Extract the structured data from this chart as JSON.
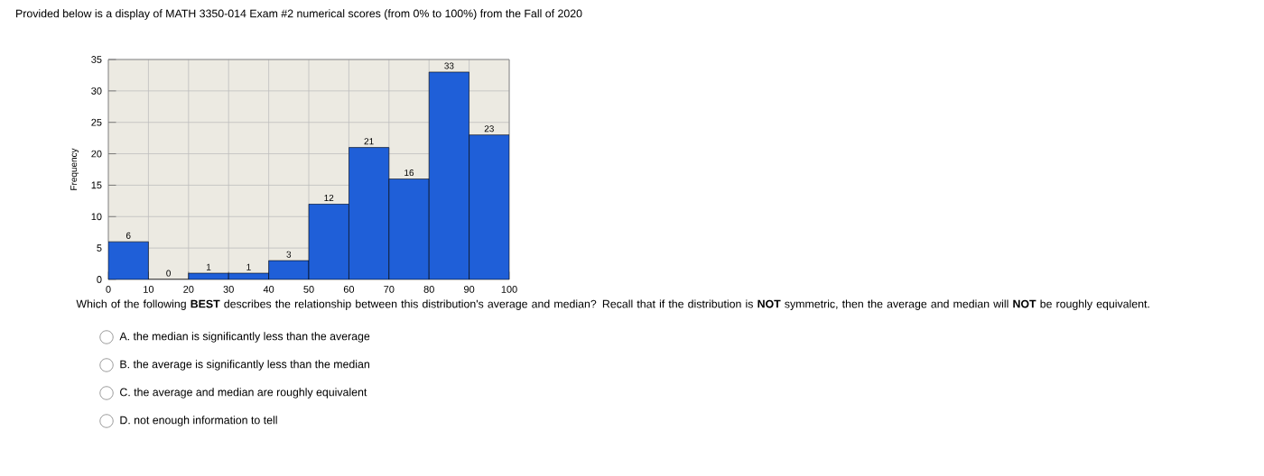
{
  "chart_data": {
    "type": "histogram",
    "title": "Provided below is a display of MATH 3350-014 Exam #2 numerical scores (from 0% to 100%) from the Fall of 2020",
    "ylabel": "Frequency",
    "bins": [
      0,
      10,
      20,
      30,
      40,
      50,
      60,
      70,
      80,
      90,
      100
    ],
    "values": [
      6,
      0,
      1,
      1,
      3,
      12,
      21,
      16,
      33,
      23
    ],
    "color": "#1f5fd8",
    "data_labels": true,
    "xlim": [
      0,
      100
    ],
    "ylim": [
      0,
      35
    ],
    "xticks": [
      0,
      10,
      20,
      30,
      40,
      50,
      60,
      70,
      80,
      90,
      100
    ],
    "yticks": [
      0,
      5,
      10,
      15,
      20,
      25,
      30,
      35
    ],
    "grid": true,
    "annotations": [
      "Which of the following **BEST** describes the relationship between this distribution's average and median? Recall that if the distribution is **NOT** symmetric, then the average and median will **NOT** be roughly equivalent.",
      "A. the median is significantly less than the average",
      "B. the average is significantly less than the median",
      "C. the average and median are roughly equivalent",
      "D. not enough information to tell"
    ]
  }
}
